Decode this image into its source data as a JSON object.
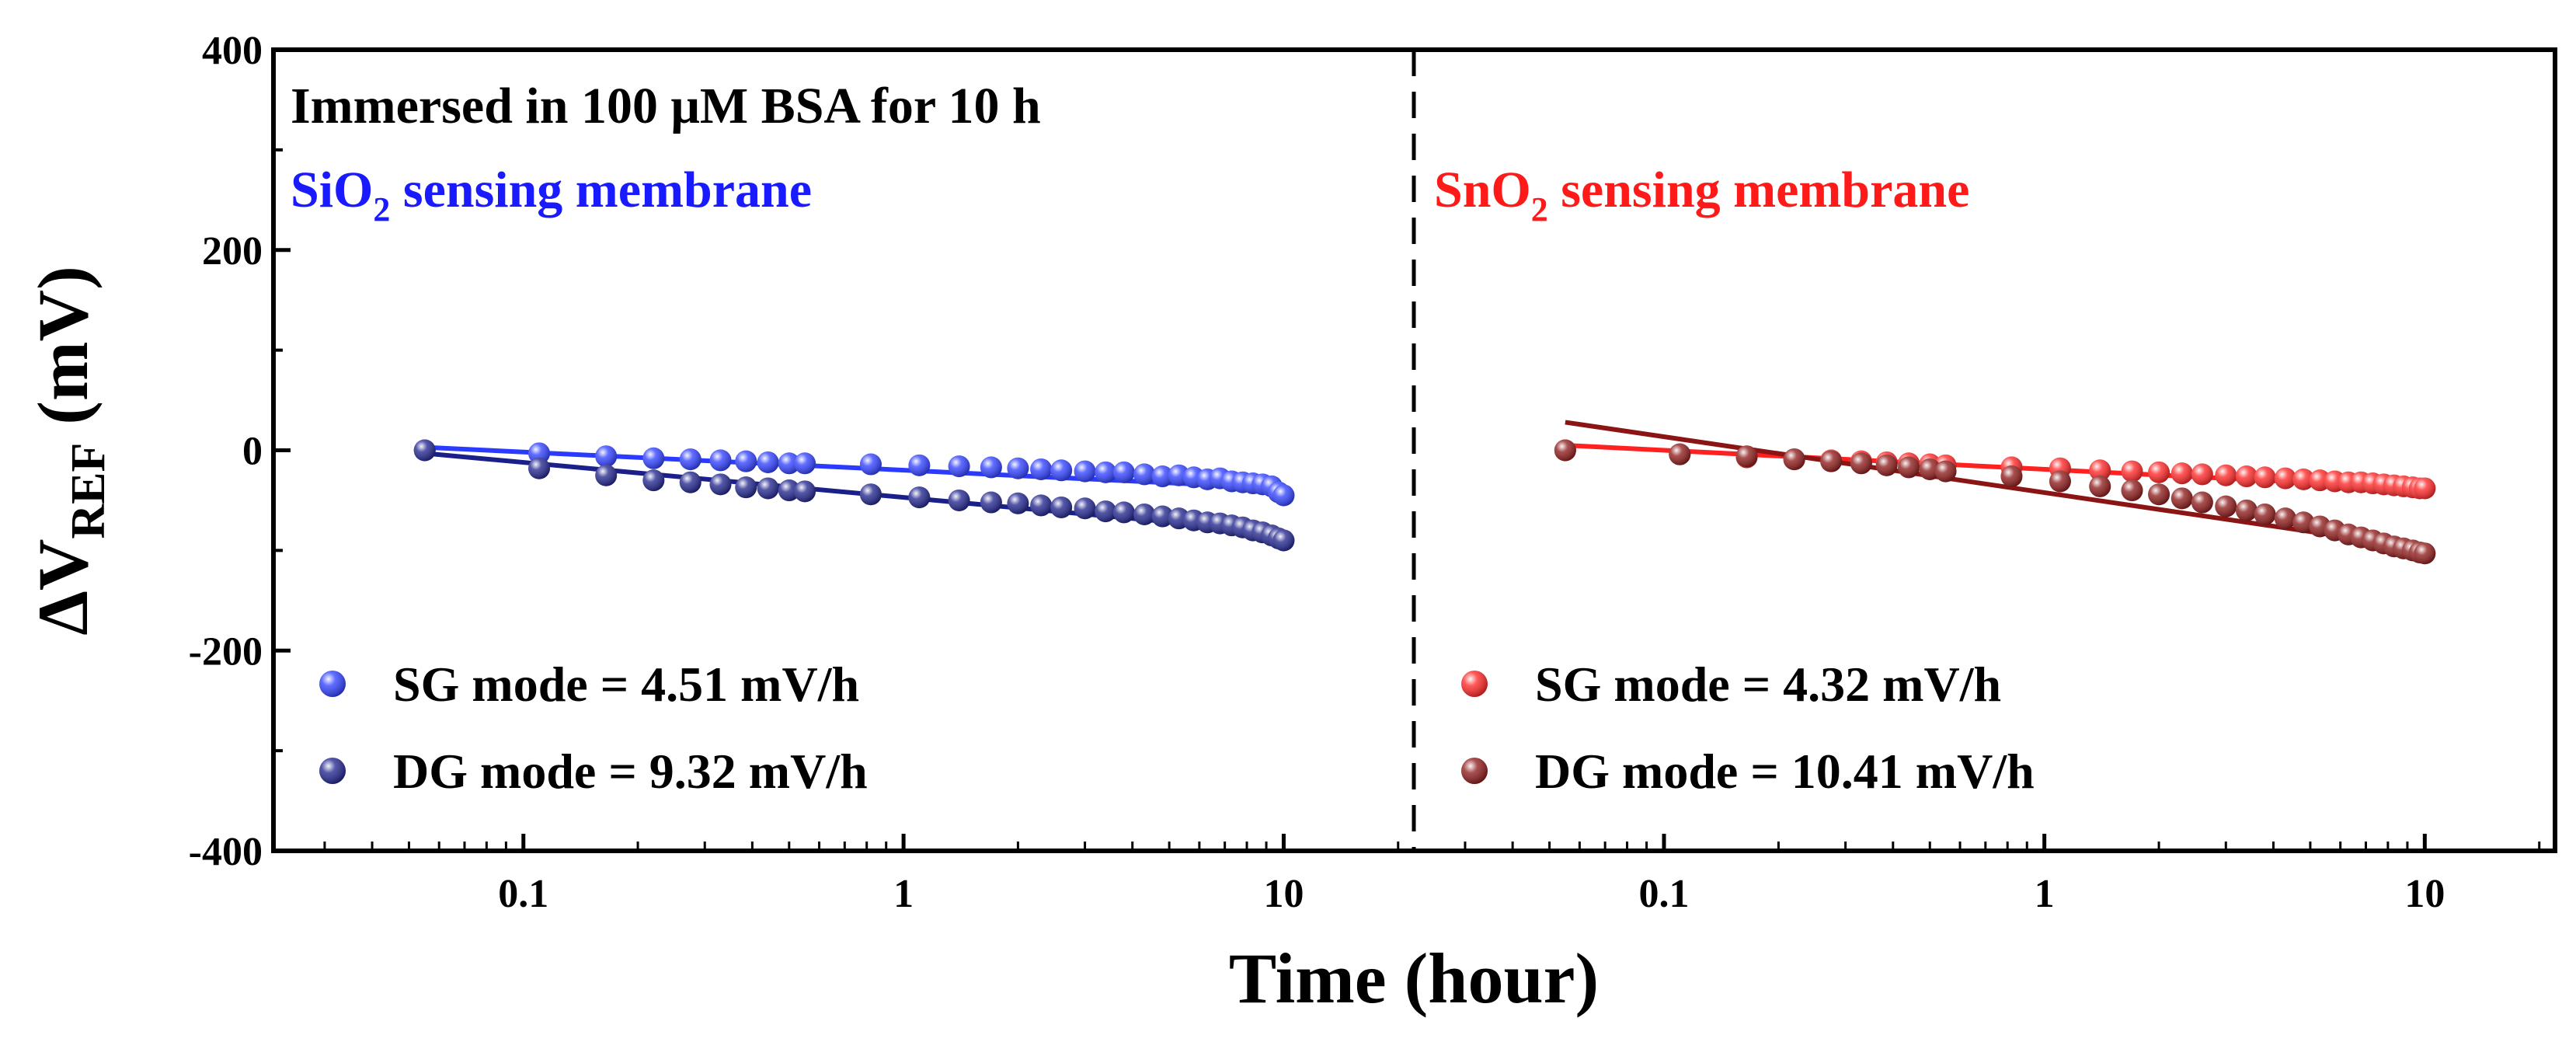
{
  "chart_data": {
    "type": "scatter",
    "title": "",
    "xlabel": "Time (hour)",
    "ylabel": {
      "prefix": "ΔV",
      "subscript": "REF",
      "suffix": " (mV)"
    },
    "xscale": "log",
    "xlim": [
      0.022,
      22
    ],
    "ylim": [
      -400,
      400
    ],
    "yticks": [
      -400,
      -200,
      0,
      200,
      400
    ],
    "xticks": [
      0.1,
      1,
      10
    ],
    "xtick_labels": [
      "0.1",
      "1",
      "10"
    ],
    "grid": false,
    "panels": [
      {
        "id": "sio2",
        "annotation_title": "Immersed in 100 μM BSA for 10 h",
        "membrane_label": {
          "prefix": "SiO",
          "subscript": "2",
          "suffix": " sensing membrane"
        },
        "membrane_color": "#1a1aff",
        "legend_position": "bottom-left",
        "series": [
          {
            "name": "SG mode = 4.51 mV/h",
            "color": "#2a3bff",
            "fit": {
              "x": [
                0.055,
                10
              ],
              "y": [
                3,
                -38
              ]
            },
            "points": {
              "x": [
                0.055,
                0.11,
                0.165,
                0.22,
                0.275,
                0.33,
                0.385,
                0.44,
                0.5,
                0.55,
                0.82,
                1.1,
                1.4,
                1.7,
                2.0,
                2.3,
                2.6,
                3.0,
                3.4,
                3.8,
                4.3,
                4.8,
                5.3,
                5.8,
                6.3,
                6.8,
                7.3,
                7.8,
                8.3,
                8.8,
                9.3,
                9.7,
                10
              ],
              "y": [
                0,
                -3,
                -6,
                -8,
                -9,
                -10,
                -11,
                -12,
                -13,
                -13,
                -14,
                -15,
                -16,
                -17,
                -18,
                -19,
                -20,
                -21,
                -22,
                -22,
                -24,
                -26,
                -25,
                -27,
                -29,
                -28,
                -31,
                -32,
                -33,
                -34,
                -36,
                -42,
                -45
              ]
            }
          },
          {
            "name": "DG mode = 9.32 mV/h",
            "color": "#1b1f8a",
            "fit": {
              "x": [
                0.055,
                10
              ],
              "y": [
                -3,
                -82
              ]
            },
            "points": {
              "x": [
                0.055,
                0.11,
                0.165,
                0.22,
                0.275,
                0.33,
                0.385,
                0.44,
                0.5,
                0.55,
                0.82,
                1.1,
                1.4,
                1.7,
                2.0,
                2.3,
                2.6,
                3.0,
                3.4,
                3.8,
                4.3,
                4.8,
                5.3,
                5.8,
                6.3,
                6.8,
                7.3,
                7.8,
                8.3,
                8.8,
                9.3,
                9.7,
                10
              ],
              "y": [
                0,
                -18,
                -25,
                -30,
                -32,
                -34,
                -37,
                -38,
                -40,
                -41,
                -44,
                -47,
                -50,
                -52,
                -53,
                -55,
                -57,
                -58,
                -61,
                -62,
                -64,
                -66,
                -68,
                -70,
                -72,
                -73,
                -75,
                -77,
                -80,
                -82,
                -85,
                -88,
                -90
              ]
            }
          }
        ]
      },
      {
        "id": "sno2",
        "annotation_title": "",
        "membrane_label": {
          "prefix": "SnO",
          "subscript": "2",
          "suffix": " sensing membrane"
        },
        "membrane_color": "#ff1a1a",
        "legend_position": "bottom-left",
        "series": [
          {
            "name": "SG mode = 4.32 mV/h",
            "color": "#ff2020",
            "fit": {
              "x": [
                0.055,
                10
              ],
              "y": [
                5,
                -38
              ]
            },
            "points": {
              "x": [
                0.055,
                0.11,
                0.165,
                0.22,
                0.275,
                0.33,
                0.385,
                0.44,
                0.5,
                0.55,
                0.82,
                1.1,
                1.4,
                1.7,
                2.0,
                2.3,
                2.6,
                3.0,
                3.4,
                3.8,
                4.3,
                4.8,
                5.3,
                5.8,
                6.3,
                6.8,
                7.3,
                7.8,
                8.3,
                8.8,
                9.3,
                9.7,
                10
              ],
              "y": [
                0,
                -4,
                -7,
                -9,
                -10,
                -11,
                -12,
                -13,
                -14,
                -15,
                -17,
                -18,
                -20,
                -21,
                -22,
                -23,
                -24,
                -25,
                -26,
                -27,
                -28,
                -29,
                -30,
                -31,
                -32,
                -32,
                -33,
                -34,
                -35,
                -36,
                -37,
                -38,
                -38
              ]
            }
          },
          {
            "name": "DG mode = 10.41 mV/h",
            "color": "#8b1414",
            "fit": {
              "x": [
                0.055,
                10
              ],
              "y": [
                28,
                -98
              ]
            },
            "points": {
              "x": [
                0.055,
                0.11,
                0.165,
                0.22,
                0.275,
                0.33,
                0.385,
                0.44,
                0.5,
                0.55,
                0.82,
                1.1,
                1.4,
                1.7,
                2.0,
                2.3,
                2.6,
                3.0,
                3.4,
                3.8,
                4.3,
                4.8,
                5.3,
                5.8,
                6.3,
                6.8,
                7.3,
                7.8,
                8.3,
                8.8,
                9.3,
                9.7,
                10
              ],
              "y": [
                0,
                -4,
                -6,
                -9,
                -11,
                -13,
                -15,
                -17,
                -19,
                -21,
                -26,
                -31,
                -36,
                -40,
                -44,
                -48,
                -52,
                -56,
                -60,
                -64,
                -68,
                -72,
                -76,
                -80,
                -84,
                -87,
                -90,
                -93,
                -96,
                -98,
                -100,
                -102,
                -103
              ]
            }
          }
        ]
      }
    ]
  }
}
